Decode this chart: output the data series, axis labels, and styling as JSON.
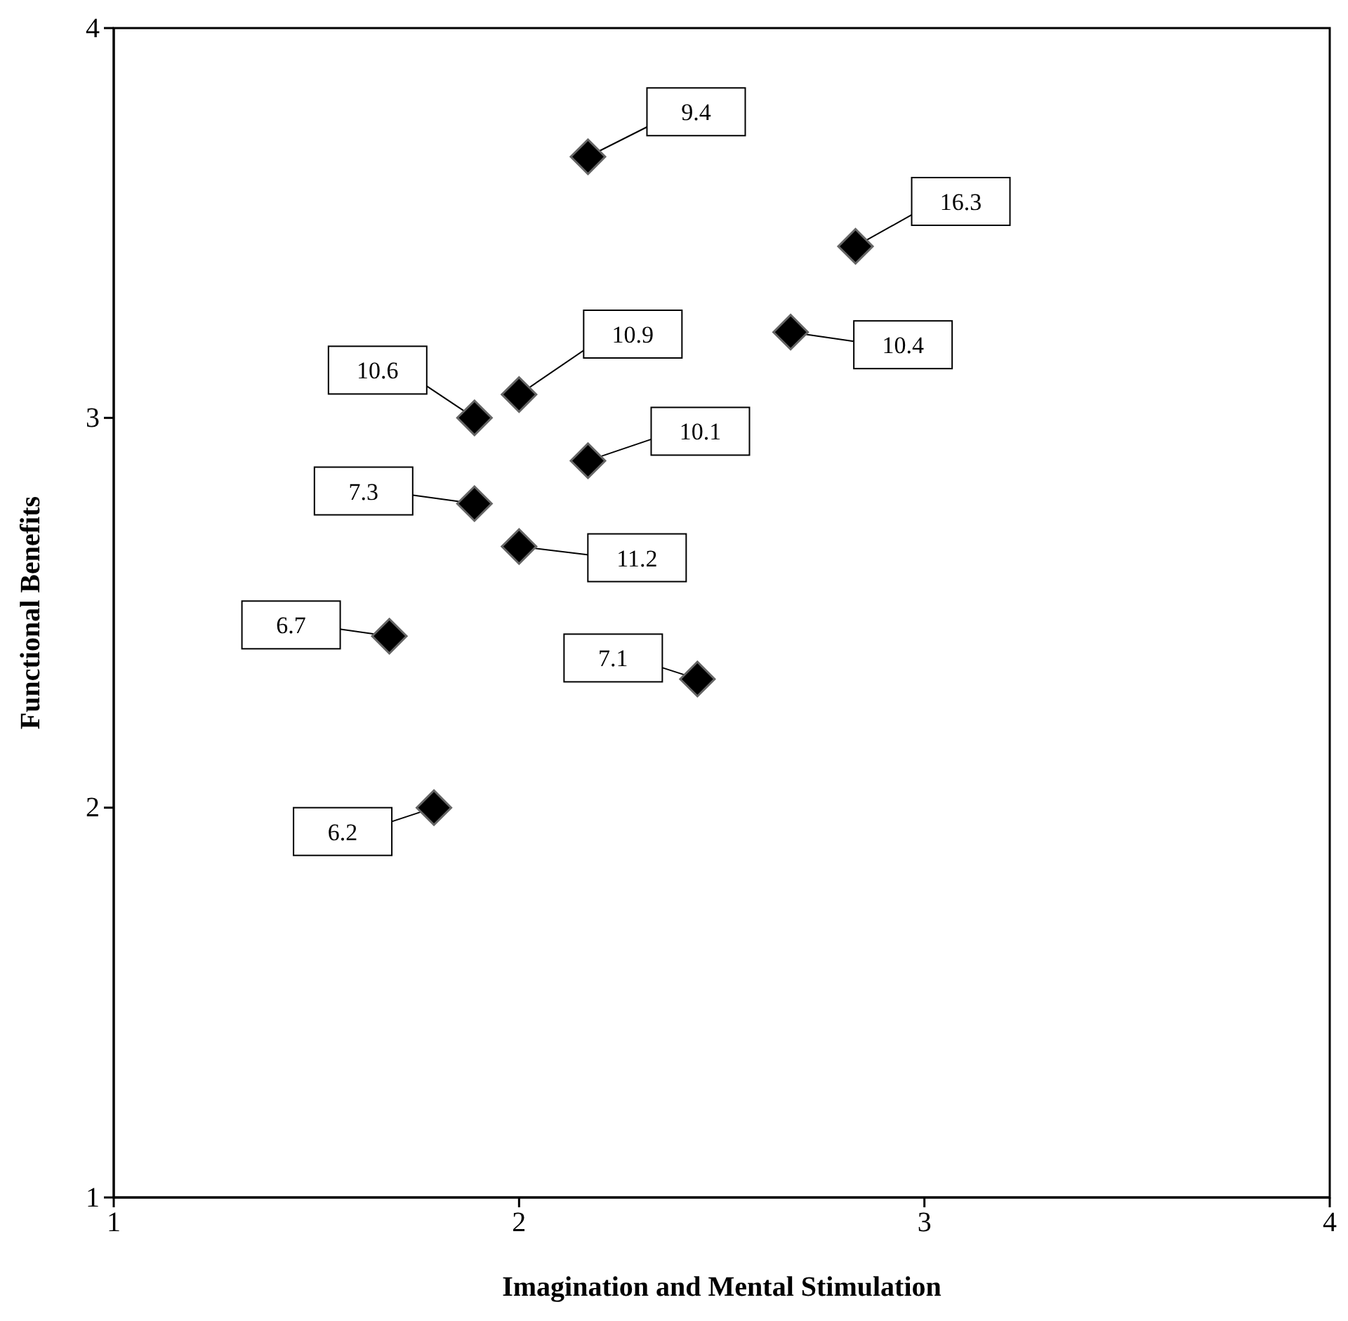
{
  "chart_data": {
    "type": "scatter",
    "xlabel": "Imagination and Mental Stimulation",
    "ylabel": "Functional Benefits",
    "xlim": [
      1,
      4
    ],
    "ylim": [
      1,
      4
    ],
    "xticks": [
      1,
      2,
      3,
      4
    ],
    "yticks": [
      1,
      2,
      3,
      4
    ],
    "grid": false,
    "legend": false,
    "marker": "diamond",
    "series": [
      {
        "color": "#000000",
        "x": [
          2.17,
          2.83,
          2.67,
          2.0,
          1.89,
          2.17,
          1.89,
          2.0,
          1.68,
          2.44,
          1.79
        ],
        "values": [
          3.67,
          3.44,
          3.22,
          3.06,
          3.0,
          2.89,
          2.78,
          2.67,
          2.44,
          2.33,
          2.0
        ]
      }
    ],
    "annotations": [
      {
        "text": "9.4",
        "x": 2.17,
        "y": 3.67
      },
      {
        "text": "16.3",
        "x": 2.83,
        "y": 3.44
      },
      {
        "text": "10.4",
        "x": 2.67,
        "y": 3.22
      },
      {
        "text": "10.9",
        "x": 2.0,
        "y": 3.06
      },
      {
        "text": "10.6",
        "x": 1.89,
        "y": 3.0
      },
      {
        "text": "10.1",
        "x": 2.17,
        "y": 2.89
      },
      {
        "text": "7.3",
        "x": 1.89,
        "y": 2.78
      },
      {
        "text": "11.2",
        "x": 2.0,
        "y": 2.67
      },
      {
        "text": "6.7",
        "x": 1.68,
        "y": 2.44
      },
      {
        "text": "7.1",
        "x": 2.44,
        "y": 2.33
      },
      {
        "text": "6.2",
        "x": 1.79,
        "y": 2.0
      }
    ]
  }
}
